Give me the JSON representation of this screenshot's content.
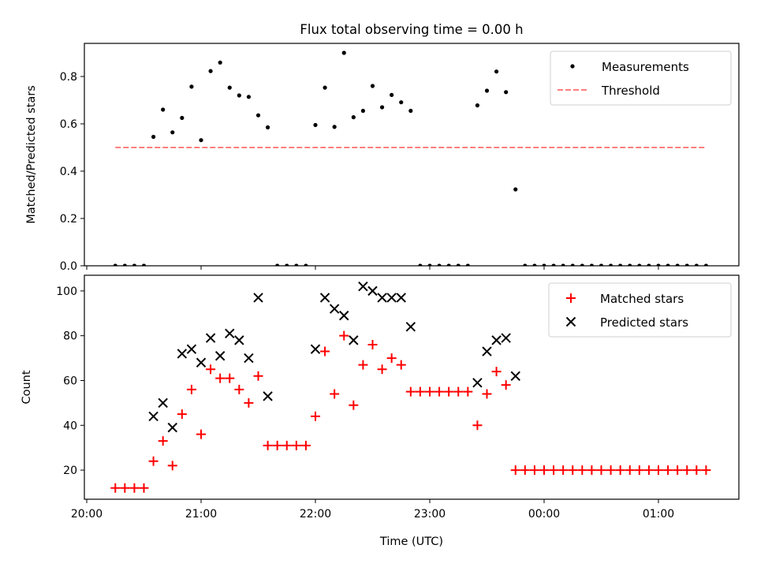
{
  "chart_data": [
    {
      "type": "scatter",
      "title": "Flux total observing time = 0.00 h",
      "xlabel": "",
      "ylabel": "Matched/Predicted stars",
      "ylim": [
        0,
        0.94
      ],
      "yticks": [
        "0.0",
        "0.2",
        "0.4",
        "0.6",
        "0.8"
      ],
      "x_ticks": [
        "20:00",
        "21:00",
        "22:00",
        "23:00",
        "00:00",
        "01:00"
      ],
      "x_ticks_shown": false,
      "legend_position": "top-right",
      "series": [
        {
          "name": "Measurements",
          "marker": "dot",
          "color": "#000000",
          "x": [
            "20:15",
            "20:20",
            "20:25",
            "20:30",
            "20:35",
            "20:40",
            "20:45",
            "20:50",
            "20:55",
            "21:00",
            "21:05",
            "21:10",
            "21:15",
            "21:20",
            "21:25",
            "21:30",
            "21:35",
            "21:40",
            "21:45",
            "21:50",
            "21:55",
            "22:00",
            "22:05",
            "22:10",
            "22:15",
            "22:20",
            "22:25",
            "22:30",
            "22:35",
            "22:40",
            "22:45",
            "22:50",
            "22:55",
            "23:00",
            "23:05",
            "23:10",
            "23:15",
            "23:20",
            "23:25",
            "23:30",
            "23:35",
            "23:40",
            "23:45",
            "23:50",
            "23:55",
            "00:00",
            "00:05",
            "00:10",
            "00:15",
            "00:20",
            "00:25",
            "00:30",
            "00:35",
            "00:40",
            "00:45",
            "00:50",
            "00:55",
            "01:00",
            "01:05",
            "01:10",
            "01:15",
            "01:20",
            "01:25"
          ],
          "y": [
            0,
            0,
            0,
            0,
            0.545,
            0.66,
            0.564,
            0.625,
            0.757,
            0.531,
            0.823,
            0.859,
            0.753,
            0.72,
            0.714,
            0.636,
            0.585,
            0,
            0,
            0,
            0,
            0.595,
            0.753,
            0.587,
            0.9,
            0.628,
            0.655,
            0.76,
            0.67,
            0.722,
            0.691,
            0.655,
            0,
            0,
            0,
            0,
            0,
            0,
            0.678,
            0.74,
            0.821,
            0.734,
            0.323,
            0,
            0,
            0,
            0,
            0,
            0,
            0,
            0,
            0,
            0,
            0,
            0,
            0,
            0,
            0,
            0,
            0,
            0,
            0,
            0
          ]
        },
        {
          "name": "Threshold",
          "style": "dashed",
          "color": "#ff7f7f",
          "x": [
            "20:15",
            "01:25"
          ],
          "y": [
            0.5,
            0.5
          ]
        }
      ]
    },
    {
      "type": "scatter",
      "title": "",
      "xlabel": "Time (UTC)",
      "ylabel": "Count",
      "ylim": [
        7,
        107
      ],
      "yticks": [
        "20",
        "40",
        "60",
        "80",
        "100"
      ],
      "x_ticks": [
        "20:00",
        "21:00",
        "22:00",
        "23:00",
        "00:00",
        "01:00"
      ],
      "x_ticks_shown": true,
      "legend_position": "top-right",
      "series": [
        {
          "name": "Matched stars",
          "marker": "plus",
          "color": "#ff0000",
          "x": [
            "20:15",
            "20:20",
            "20:25",
            "20:30",
            "20:35",
            "20:40",
            "20:45",
            "20:50",
            "20:55",
            "21:00",
            "21:05",
            "21:10",
            "21:15",
            "21:20",
            "21:25",
            "21:30",
            "21:35",
            "21:40",
            "21:45",
            "21:50",
            "21:55",
            "22:00",
            "22:05",
            "22:10",
            "22:15",
            "22:20",
            "22:25",
            "22:30",
            "22:35",
            "22:40",
            "22:45",
            "22:50",
            "22:55",
            "23:00",
            "23:05",
            "23:10",
            "23:15",
            "23:20",
            "23:25",
            "23:30",
            "23:35",
            "23:40",
            "23:45",
            "23:50",
            "23:55",
            "00:00",
            "00:05",
            "00:10",
            "00:15",
            "00:20",
            "00:25",
            "00:30",
            "00:35",
            "00:40",
            "00:45",
            "00:50",
            "00:55",
            "01:00",
            "01:05",
            "01:10",
            "01:15",
            "01:20",
            "01:25"
          ],
          "y": [
            12,
            12,
            12,
            12,
            24,
            33,
            22,
            45,
            56,
            36,
            65,
            61,
            61,
            56,
            50,
            62,
            31,
            31,
            31,
            31,
            31,
            44,
            73,
            54,
            80,
            49,
            67,
            76,
            65,
            70,
            67,
            55,
            55,
            55,
            55,
            55,
            55,
            55,
            40,
            54,
            64,
            58,
            20,
            20,
            20,
            20,
            20,
            20,
            20,
            20,
            20,
            20,
            20,
            20,
            20,
            20,
            20,
            20,
            20,
            20,
            20,
            20,
            20
          ]
        },
        {
          "name": "Predicted stars",
          "marker": "x",
          "color": "#000000",
          "x": [
            "20:35",
            "20:40",
            "20:45",
            "20:50",
            "20:55",
            "21:00",
            "21:05",
            "21:10",
            "21:15",
            "21:20",
            "21:25",
            "21:30",
            "21:35",
            "22:00",
            "22:05",
            "22:10",
            "22:15",
            "22:20",
            "22:25",
            "22:30",
            "22:35",
            "22:40",
            "22:45",
            "22:50",
            "23:25",
            "23:30",
            "23:35",
            "23:40",
            "23:45"
          ],
          "y": [
            44,
            50,
            39,
            72,
            74,
            68,
            79,
            71,
            81,
            78,
            70,
            97,
            53,
            74,
            97,
            92,
            89,
            78,
            102,
            100,
            97,
            97,
            97,
            84,
            59,
            73,
            78,
            79,
            62
          ]
        }
      ]
    }
  ]
}
